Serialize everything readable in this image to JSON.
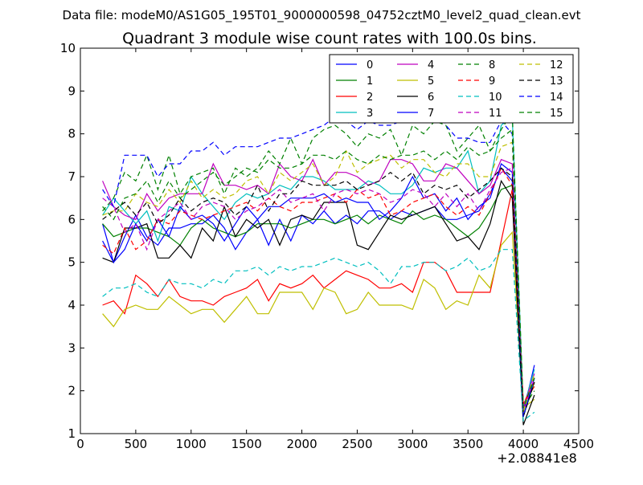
{
  "chart_data": {
    "type": "line",
    "suptitle": "Data file: modeM0/AS1G05_195T01_9000000598_04752cztM0_level2_quad_clean.evt",
    "title": "Quadrant 3 module wise count rates with 100.0s bins.",
    "xlabel": "",
    "ylabel": "",
    "x_offset_label": "+2.08841e8",
    "xlim": [
      0,
      4500
    ],
    "ylim": [
      1,
      10
    ],
    "xticks": [
      0,
      500,
      1000,
      1500,
      2000,
      2500,
      3000,
      3500,
      4000,
      4500
    ],
    "yticks": [
      1,
      2,
      3,
      4,
      5,
      6,
      7,
      8,
      9,
      10
    ],
    "grid": false,
    "legend": {
      "placement": "top-right",
      "columns": 4
    },
    "x": [
      200,
      300,
      400,
      500,
      600,
      700,
      800,
      900,
      1000,
      1100,
      1200,
      1300,
      1400,
      1500,
      1600,
      1700,
      1800,
      1900,
      2000,
      2100,
      2200,
      2300,
      2400,
      2500,
      2600,
      2700,
      2800,
      2900,
      3000,
      3100,
      3200,
      3300,
      3400,
      3500,
      3600,
      3700,
      3800,
      3900,
      4000,
      4100
    ],
    "series": [
      {
        "name": "0",
        "color": "#0000ff",
        "dash": "solid",
        "values": [
          5.9,
          5.0,
          5.6,
          6.1,
          5.6,
          5.4,
          5.8,
          5.8,
          5.9,
          5.9,
          6.1,
          5.8,
          5.3,
          5.7,
          6.0,
          5.4,
          6.0,
          5.5,
          6.1,
          5.9,
          6.2,
          5.9,
          6.1,
          5.9,
          6.2,
          6.2,
          6.0,
          6.2,
          6.1,
          6.2,
          6.3,
          6.0,
          6.0,
          6.1,
          6.2,
          6.6,
          7.2,
          6.9,
          1.5,
          2.6
        ]
      },
      {
        "name": "1",
        "color": "#008000",
        "dash": "solid",
        "values": [
          5.9,
          5.6,
          5.7,
          5.8,
          5.8,
          5.7,
          5.6,
          5.4,
          5.8,
          6.0,
          5.8,
          5.7,
          5.6,
          5.7,
          5.9,
          5.9,
          5.9,
          5.8,
          5.9,
          6.0,
          6.0,
          5.9,
          6.0,
          6.1,
          5.9,
          6.1,
          6.0,
          5.9,
          6.2,
          6.0,
          6.1,
          6.0,
          5.8,
          5.6,
          5.8,
          6.2,
          6.7,
          6.8,
          1.4,
          2.2
        ]
      },
      {
        "name": "2",
        "color": "#ff0000",
        "dash": "solid",
        "values": [
          4.0,
          4.1,
          3.8,
          4.7,
          4.5,
          4.2,
          4.6,
          4.2,
          4.1,
          4.1,
          4.0,
          4.2,
          4.3,
          4.4,
          4.6,
          4.1,
          4.5,
          4.4,
          4.5,
          4.7,
          4.4,
          4.6,
          4.8,
          4.7,
          4.6,
          4.4,
          4.4,
          4.5,
          4.3,
          5.0,
          5.0,
          4.8,
          4.3,
          4.3,
          4.3,
          4.3,
          5.5,
          6.7,
          1.7,
          2.1
        ]
      },
      {
        "name": "3",
        "color": "#00bfbf",
        "dash": "solid",
        "values": [
          6.1,
          6.5,
          6.2,
          5.9,
          6.2,
          5.5,
          6.3,
          6.2,
          7.0,
          6.6,
          6.3,
          6.0,
          6.4,
          6.6,
          6.5,
          6.6,
          6.8,
          6.7,
          7.0,
          7.0,
          6.9,
          6.7,
          6.7,
          6.7,
          6.9,
          6.8,
          6.6,
          6.6,
          6.8,
          7.2,
          7.1,
          7.2,
          7.2,
          7.6,
          6.6,
          6.9,
          8.2,
          8.4,
          1.6,
          2.5
        ]
      },
      {
        "name": "4",
        "color": "#bf00bf",
        "dash": "solid",
        "values": [
          6.9,
          6.3,
          6.1,
          6.0,
          6.6,
          6.2,
          6.5,
          6.6,
          6.6,
          6.6,
          7.3,
          6.8,
          6.8,
          6.7,
          6.8,
          6.6,
          7.3,
          7.0,
          6.9,
          7.4,
          6.8,
          7.1,
          7.1,
          7.0,
          6.8,
          6.9,
          7.4,
          7.4,
          7.3,
          6.9,
          6.9,
          7.3,
          7.2,
          6.9,
          6.6,
          6.8,
          7.4,
          7.3,
          1.6,
          2.4
        ]
      },
      {
        "name": "5",
        "color": "#bfbf00",
        "dash": "solid",
        "values": [
          3.8,
          3.5,
          3.9,
          4.0,
          3.9,
          3.9,
          4.2,
          4.0,
          3.8,
          3.9,
          3.9,
          3.6,
          3.9,
          4.2,
          3.8,
          3.8,
          4.3,
          4.3,
          4.3,
          3.9,
          4.4,
          4.3,
          3.8,
          3.9,
          4.3,
          4.0,
          4.0,
          4.0,
          3.9,
          4.6,
          4.4,
          3.9,
          4.1,
          4.0,
          4.7,
          4.4,
          5.4,
          5.7,
          1.6,
          1.8
        ]
      },
      {
        "name": "6",
        "color": "#000000",
        "dash": "solid",
        "values": [
          5.1,
          5.0,
          5.8,
          5.8,
          5.9,
          5.1,
          5.1,
          5.4,
          5.1,
          5.8,
          5.5,
          6.3,
          5.6,
          6.0,
          5.8,
          6.0,
          5.4,
          6.0,
          6.1,
          6.0,
          6.4,
          6.4,
          6.4,
          5.4,
          5.3,
          5.7,
          6.1,
          6.0,
          6.1,
          6.2,
          6.3,
          5.9,
          5.5,
          5.6,
          5.3,
          5.9,
          6.9,
          6.5,
          1.2,
          1.9
        ]
      },
      {
        "name": "7",
        "color": "#0000ff",
        "dash": "solid",
        "values": [
          5.5,
          5.0,
          5.3,
          5.9,
          5.5,
          6.0,
          5.6,
          6.3,
          6.0,
          6.1,
          5.9,
          5.5,
          5.9,
          6.3,
          6.0,
          6.3,
          6.3,
          6.5,
          6.5,
          6.5,
          6.6,
          6.4,
          6.5,
          6.4,
          6.4,
          6.0,
          6.2,
          6.5,
          7.0,
          6.5,
          6.6,
          6.2,
          6.5,
          6.0,
          6.3,
          6.5,
          7.3,
          7.1,
          1.4,
          2.3
        ]
      },
      {
        "name": "8",
        "color": "#008000",
        "dash": "dashed",
        "values": [
          6.2,
          6.5,
          7.1,
          6.9,
          7.5,
          6.7,
          7.5,
          6.6,
          7.0,
          7.1,
          7.2,
          6.6,
          7.2,
          7.0,
          7.2,
          7.6,
          7.3,
          7.9,
          7.3,
          7.9,
          8.1,
          8.2,
          8.0,
          7.7,
          8.0,
          7.9,
          8.1,
          7.5,
          8.2,
          8.0,
          8.3,
          8.2,
          7.6,
          7.9,
          8.2,
          7.6,
          8.1,
          8.5,
          1.6,
          2.0
        ]
      },
      {
        "name": "9",
        "color": "#ff0000",
        "dash": "dashed",
        "values": [
          5.4,
          5.2,
          5.8,
          5.3,
          5.5,
          6.0,
          5.9,
          6.2,
          6.1,
          6.0,
          6.1,
          6.2,
          6.3,
          6.4,
          6.2,
          6.5,
          6.3,
          6.2,
          6.4,
          6.4,
          6.5,
          6.6,
          6.4,
          6.7,
          6.5,
          6.6,
          6.1,
          6.2,
          6.4,
          6.5,
          6.6,
          6.3,
          6.1,
          6.3,
          6.1,
          6.6,
          7.2,
          6.8,
          1.7,
          2.2
        ]
      },
      {
        "name": "10",
        "color": "#00bfbf",
        "dash": "dashed",
        "values": [
          4.2,
          4.4,
          4.4,
          4.5,
          4.3,
          4.2,
          4.6,
          4.5,
          4.5,
          4.4,
          4.6,
          4.5,
          4.8,
          4.8,
          4.9,
          4.7,
          4.9,
          4.8,
          4.9,
          4.9,
          5.0,
          5.1,
          5.0,
          4.9,
          5.0,
          4.8,
          4.5,
          4.9,
          4.9,
          5.0,
          5.0,
          4.8,
          4.9,
          5.1,
          4.8,
          4.9,
          5.3,
          5.3,
          1.3,
          1.5
        ]
      },
      {
        "name": "11",
        "color": "#bf00bf",
        "dash": "dashed",
        "values": [
          6.5,
          6.3,
          5.7,
          5.9,
          5.3,
          6.0,
          6.2,
          6.4,
          6.0,
          6.3,
          6.4,
          6.3,
          6.0,
          6.2,
          6.3,
          6.5,
          6.7,
          6.4,
          6.5,
          6.6,
          6.2,
          6.6,
          6.7,
          6.6,
          6.7,
          6.6,
          6.4,
          6.5,
          6.7,
          6.6,
          6.3,
          6.6,
          6.3,
          6.6,
          6.2,
          6.7,
          7.1,
          7.2,
          1.5,
          2.3
        ]
      },
      {
        "name": "12",
        "color": "#bfbf00",
        "dash": "dashed",
        "values": [
          6.1,
          6.2,
          6.2,
          6.6,
          6.4,
          6.3,
          6.7,
          6.4,
          6.9,
          6.5,
          6.7,
          6.5,
          6.6,
          6.9,
          7.0,
          6.6,
          7.1,
          6.9,
          7.1,
          7.3,
          6.8,
          7.0,
          7.6,
          7.1,
          7.3,
          7.4,
          7.5,
          7.2,
          7.4,
          7.4,
          7.1,
          7.0,
          7.3,
          7.3,
          7.0,
          7.0,
          7.7,
          7.8,
          1.5,
          2.4
        ]
      },
      {
        "name": "13",
        "color": "#000000",
        "dash": "dashed",
        "values": [
          6.0,
          6.2,
          6.4,
          6.1,
          6.4,
          5.9,
          6.1,
          6.5,
          6.2,
          6.4,
          6.5,
          6.4,
          6.1,
          6.3,
          6.8,
          6.2,
          6.6,
          6.6,
          6.9,
          6.8,
          6.8,
          6.8,
          6.9,
          6.7,
          6.8,
          6.9,
          7.1,
          6.9,
          7.1,
          6.6,
          6.8,
          6.7,
          6.8,
          6.5,
          6.7,
          6.9,
          7.2,
          7.0,
          1.4,
          2.2
        ]
      },
      {
        "name": "14",
        "color": "#0000ff",
        "dash": "dashed",
        "values": [
          6.7,
          6.3,
          7.5,
          7.5,
          7.5,
          7.0,
          7.3,
          7.3,
          7.6,
          7.6,
          7.8,
          7.5,
          7.7,
          7.7,
          7.7,
          7.8,
          7.9,
          7.9,
          8.0,
          8.1,
          8.2,
          8.4,
          8.3,
          8.1,
          8.3,
          8.2,
          8.2,
          8.3,
          8.6,
          8.4,
          9.3,
          8.2,
          7.9,
          7.9,
          7.8,
          7.8,
          8.3,
          8.0,
          1.4,
          2.3
        ]
      },
      {
        "name": "15",
        "color": "#008000",
        "dash": "dashed",
        "values": [
          6.3,
          6.0,
          6.5,
          6.6,
          6.9,
          6.4,
          6.9,
          6.5,
          6.7,
          6.9,
          7.1,
          6.8,
          7.0,
          7.2,
          7.1,
          7.4,
          7.2,
          7.2,
          7.3,
          7.5,
          7.5,
          7.4,
          7.6,
          7.4,
          7.3,
          7.5,
          7.4,
          7.5,
          7.5,
          7.6,
          7.4,
          7.6,
          7.4,
          7.7,
          7.5,
          7.6,
          7.9,
          8.1,
          1.6,
          2.3
        ]
      }
    ]
  }
}
